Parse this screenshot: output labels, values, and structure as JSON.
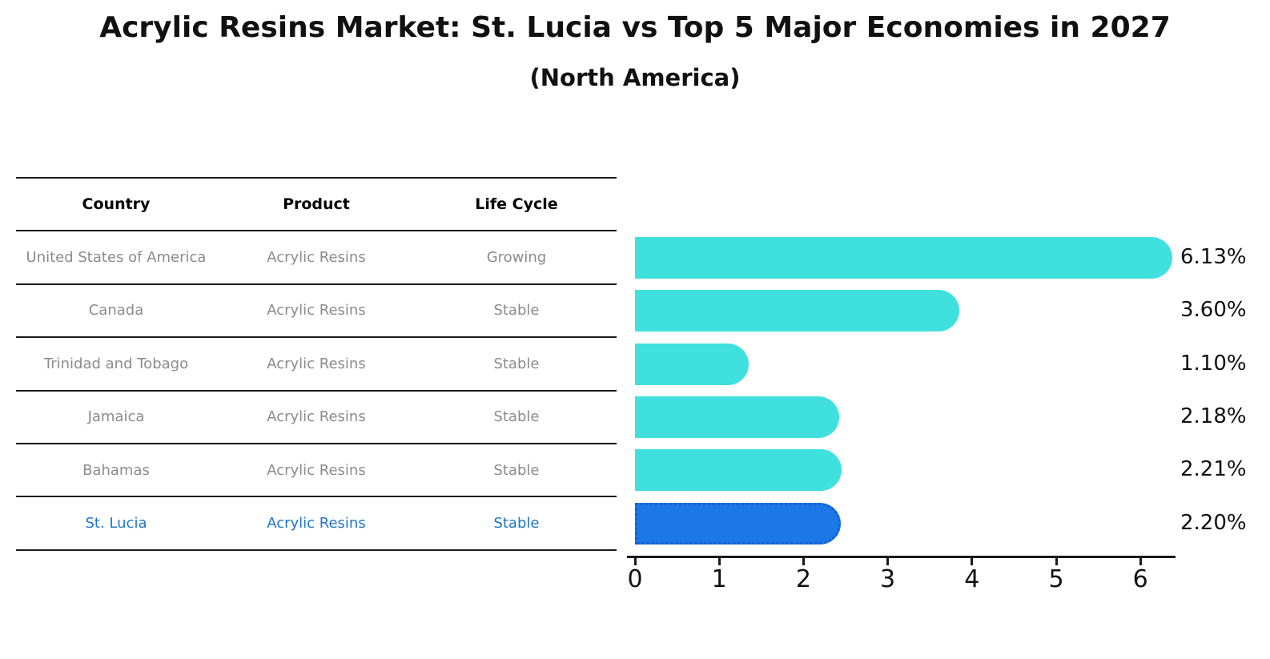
{
  "header": {
    "title": "Acrylic Resins Market: St. Lucia vs Top 5 Major Economies in 2027",
    "subtitle": "(North America)"
  },
  "table": {
    "headers": [
      "Country",
      "Product",
      "Life Cycle"
    ],
    "rows": [
      {
        "country": "United States of America",
        "product": "Acrylic Resins",
        "life_cycle": "Growing",
        "highlight": false
      },
      {
        "country": "Canada",
        "product": "Acrylic Resins",
        "life_cycle": "Stable",
        "highlight": false
      },
      {
        "country": "Trinidad and Tobago",
        "product": "Acrylic Resins",
        "life_cycle": "Stable",
        "highlight": false
      },
      {
        "country": "Jamaica",
        "product": "Acrylic Resins",
        "life_cycle": "Stable",
        "highlight": false
      },
      {
        "country": "Bahamas",
        "product": "Acrylic Resins",
        "life_cycle": "Stable",
        "highlight": false
      },
      {
        "country": "St. Lucia",
        "product": "Acrylic Resins",
        "life_cycle": "Stable",
        "highlight": true
      }
    ]
  },
  "chart_data": {
    "type": "bar",
    "orientation": "horizontal",
    "title": "Acrylic Resins Market: St. Lucia vs Top 5 Major Economies in 2027",
    "subtitle": "(North America)",
    "categories": [
      "United States of America",
      "Canada",
      "Trinidad and Tobago",
      "Jamaica",
      "Bahamas",
      "St. Lucia"
    ],
    "values": [
      6.13,
      3.6,
      1.1,
      2.18,
      2.21,
      2.2
    ],
    "value_labels": [
      "6.13%",
      "3.60%",
      "1.10%",
      "2.18%",
      "2.21%",
      "2.20%"
    ],
    "x_ticks": [
      "0",
      "1",
      "2",
      "3",
      "4",
      "5",
      "6"
    ],
    "xlim": [
      0,
      6.42
    ],
    "grid": false,
    "legend_position": "none",
    "highlight_index": 5
  },
  "colors": {
    "bar_cyan": "#40e0df",
    "bar_blue": "#1c78e6",
    "bar_blue_border": "#0f5fd0",
    "table_text_gray": "#8b8b8b",
    "highlight_text_blue": "#2176c7",
    "axis_black": "#1a1a1a"
  }
}
